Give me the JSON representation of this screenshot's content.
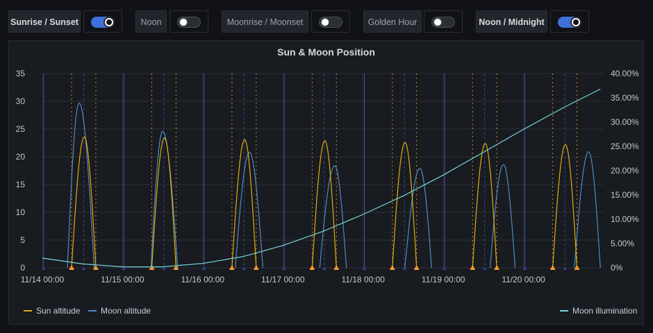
{
  "toggles": [
    {
      "label": "Sunrise / Sunset",
      "on": true
    },
    {
      "label": "Noon",
      "on": false
    },
    {
      "label": "Moonrise / Moonset",
      "on": false
    },
    {
      "label": "Golden Hour",
      "on": false
    },
    {
      "label": "Noon / Midnight",
      "on": true
    }
  ],
  "panel": {
    "title": "Sun & Moon Position"
  },
  "colors": {
    "sun": "#e5ac0e",
    "moon": "#4e8cc4",
    "illum": "#79d5de",
    "marker": "#ff9830",
    "night": "#3a3f9e"
  },
  "chart_data": {
    "type": "line",
    "title": "Sun & Moon Position",
    "x_ticks": [
      "11/14 00:00",
      "11/15 00:00",
      "11/16 00:00",
      "11/17 00:00",
      "11/18 00:00",
      "11/19 00:00",
      "11/20 00:00"
    ],
    "xlim": [
      "11/14 00:00",
      "11/20 23:59"
    ],
    "y_left": {
      "ticks": [
        "0",
        "5",
        "10",
        "15",
        "20",
        "25",
        "30",
        "35"
      ],
      "ylim": [
        0,
        35
      ]
    },
    "y_right": {
      "ticks": [
        "0%",
        "5.00%",
        "10.00%",
        "15.00%",
        "20.00%",
        "25.00%",
        "30.00%",
        "35.00%",
        "40.00%"
      ],
      "ylim": [
        0,
        40
      ]
    },
    "series": [
      {
        "name": "Sun altitude",
        "axis": "left",
        "arcs": [
          {
            "rise": "11/14 08:45",
            "peak": "11/14 12:33",
            "set": "11/14 16:00",
            "peak_value": 23.6
          },
          {
            "rise": "11/15 08:45",
            "peak": "11/15 12:33",
            "set": "11/15 16:00",
            "peak_value": 23.4
          },
          {
            "rise": "11/16 08:45",
            "peak": "11/16 12:33",
            "set": "11/16 16:00",
            "peak_value": 23.1
          },
          {
            "rise": "11/17 08:45",
            "peak": "11/17 12:33",
            "set": "11/17 16:00",
            "peak_value": 22.9
          },
          {
            "rise": "11/18 08:45",
            "peak": "11/18 12:33",
            "set": "11/18 16:00",
            "peak_value": 22.6
          },
          {
            "rise": "11/19 08:45",
            "peak": "11/19 12:33",
            "set": "11/19 16:00",
            "peak_value": 22.4
          },
          {
            "rise": "11/20 08:45",
            "peak": "11/20 12:33",
            "set": "11/20 16:00",
            "peak_value": 22.2
          }
        ]
      },
      {
        "name": "Moon altitude",
        "axis": "left",
        "arcs": [
          {
            "rise": "11/14 07:30",
            "peak": "11/14 11:00",
            "set": "11/14 15:30",
            "peak_value": 29.7
          },
          {
            "rise": "11/15 08:30",
            "peak": "11/15 12:00",
            "set": "11/15 16:30",
            "peak_value": 24.6
          },
          {
            "rise": "11/16 09:45",
            "peak": "11/16 14:00",
            "set": "11/16 18:00",
            "peak_value": 20.8
          },
          {
            "rise": "11/17 11:00",
            "peak": "11/17 15:30",
            "set": "11/17 19:00",
            "peak_value": 18.4
          },
          {
            "rise": "11/18 12:30",
            "peak": "11/18 17:00",
            "set": "11/18 20:30",
            "peak_value": 17.9
          },
          {
            "rise": "11/19 14:00",
            "peak": "11/19 18:00",
            "set": "11/19 21:30",
            "peak_value": 18.6
          },
          {
            "rise": "11/20 15:15",
            "peak": "11/20 19:30",
            "set": "11/20 23:00",
            "peak_value": 20.9
          }
        ]
      },
      {
        "name": "Moon illumination",
        "axis": "right",
        "x": [
          "11/14 00:00",
          "11/14 12:00",
          "11/15 00:00",
          "11/15 12:00",
          "11/16 00:00",
          "11/16 12:00",
          "11/17 00:00",
          "11/17 12:00",
          "11/18 00:00",
          "11/18 12:00",
          "11/19 00:00",
          "11/19 12:00",
          "11/20 00:00",
          "11/20 12:00",
          "11/20 23:00"
        ],
        "y": [
          2.0,
          0.8,
          0.2,
          0.2,
          0.9,
          2.3,
          4.6,
          7.5,
          11.0,
          14.8,
          19.1,
          23.8,
          28.5,
          33.0,
          36.8
        ]
      }
    ],
    "legend": {
      "left": [
        "Sun altitude",
        "Moon altitude"
      ],
      "right": [
        "Moon illumination"
      ]
    }
  }
}
